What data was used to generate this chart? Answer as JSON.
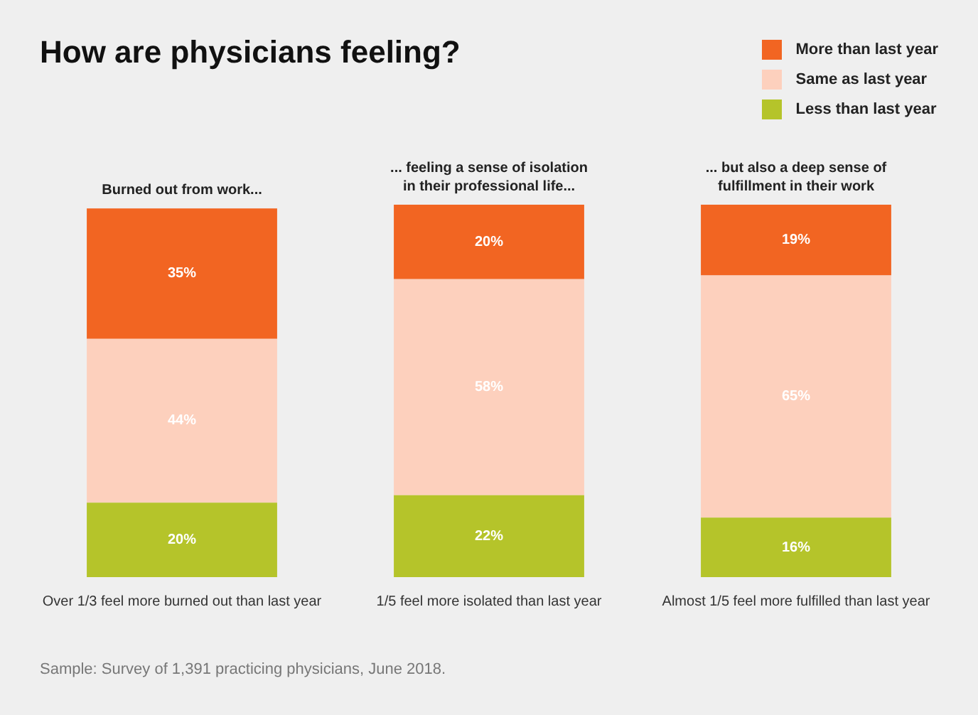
{
  "chart_data": {
    "type": "bar",
    "title": "How are physicians feeling?",
    "stacked": true,
    "legend": "top right",
    "grid": false,
    "categories": [
      "Over 1/3 feel more burned out than last year",
      "1/5 feel more isolated than last year",
      "Almost 1/5 feel more fulfilled than last year"
    ],
    "series": [
      {
        "name": "Less than last year",
        "color": "#b5c42a",
        "values": [
          20,
          22,
          16
        ],
        "value_labels": [
          "20%",
          "22%",
          "16%"
        ]
      },
      {
        "name": "Same as last year",
        "color": "#fdd0bd",
        "values": [
          44,
          58,
          65
        ],
        "value_labels": [
          "44%",
          "58%",
          "65%"
        ]
      },
      {
        "name": "More than last year",
        "color": "#f26522",
        "values": [
          35,
          20,
          19
        ],
        "value_labels": [
          "35%",
          "20%",
          "19%"
        ]
      }
    ],
    "annotations": [
      {
        "text": "Burned out from work...",
        "x": "Over 1/3 feel more burned out than last year",
        "y": 99
      },
      {
        "text": "... feeling a sense of isolation in their professional life...",
        "x": "1/5 feel more isolated than last year",
        "y": 100
      },
      {
        "text": "... but also a deep sense of fulfillment in their work",
        "x": "Almost 1/5 feel more fulfilled than last year",
        "y": 100
      },
      "Sample: Survey of 1,391 practicing physicians, June 2018."
    ]
  }
}
